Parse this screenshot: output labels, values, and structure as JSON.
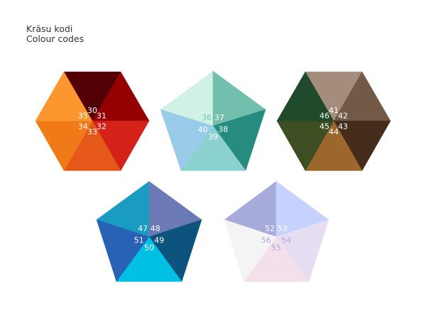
{
  "header": {
    "title_lv": "Krāsu kodi",
    "title_en": "Colour codes"
  },
  "shapes": [
    {
      "kind": "hexagon",
      "segments": [
        {
          "code": "30",
          "color": "#520004",
          "label_color": "#ffffff"
        },
        {
          "code": "31",
          "color": "#950002",
          "label_color": "#ffffff"
        },
        {
          "code": "32",
          "color": "#d4221a",
          "label_color": "#ffffff"
        },
        {
          "code": "33",
          "color": "#e55819",
          "label_color": "#ffffff"
        },
        {
          "code": "34",
          "color": "#f07a17",
          "label_color": "#ffffff"
        },
        {
          "code": "35",
          "color": "#fc962e",
          "label_color": "#ffffff"
        }
      ]
    },
    {
      "kind": "pentagon",
      "segments": [
        {
          "code": "36",
          "color": "#d0f2e6",
          "label_color": "#7cc6b2"
        },
        {
          "code": "37",
          "color": "#72bfae",
          "label_color": "#ffffff"
        },
        {
          "code": "38",
          "color": "#268c7f",
          "label_color": "#ffffff"
        },
        {
          "code": "39",
          "color": "#8ad1d0",
          "label_color": "#ffffff"
        },
        {
          "code": "40",
          "color": "#98cce8",
          "label_color": "#ffffff"
        }
      ]
    },
    {
      "kind": "hexagon",
      "segments": [
        {
          "code": "41",
          "color": "#a48d7b",
          "label_color": "#ffffff"
        },
        {
          "code": "42",
          "color": "#735a46",
          "label_color": "#ffffff"
        },
        {
          "code": "43",
          "color": "#442b1a",
          "label_color": "#ffffff"
        },
        {
          "code": "44",
          "color": "#9b672c",
          "label_color": "#ffffff"
        },
        {
          "code": "45",
          "color": "#3d4e22",
          "label_color": "#ffffff"
        },
        {
          "code": "46",
          "color": "#214a2c",
          "label_color": "#ffffff"
        }
      ]
    },
    {
      "kind": "pentagon",
      "segments": [
        {
          "code": "47",
          "color": "#1a9cc2",
          "label_color": "#ffffff"
        },
        {
          "code": "48",
          "color": "#6b79b5",
          "label_color": "#ffffff"
        },
        {
          "code": "49",
          "color": "#0c547d",
          "label_color": "#ffffff"
        },
        {
          "code": "50",
          "color": "#00c0e4",
          "label_color": "#ffffff"
        },
        {
          "code": "51",
          "color": "#2862b4",
          "label_color": "#ffffff"
        }
      ]
    },
    {
      "kind": "pentagon",
      "segments": [
        {
          "code": "52",
          "color": "#a7abdc",
          "label_color": "#ffffff"
        },
        {
          "code": "53",
          "color": "#c6d1fd",
          "label_color": "#ffffff"
        },
        {
          "code": "54",
          "color": "#e7ddf3",
          "label_color": "#aaa9dc"
        },
        {
          "code": "55",
          "color": "#f3e0ea",
          "label_color": "#aaa9dc"
        },
        {
          "code": "56",
          "color": "#f4f4f4",
          "label_color": "#aaa9dc"
        }
      ]
    }
  ]
}
